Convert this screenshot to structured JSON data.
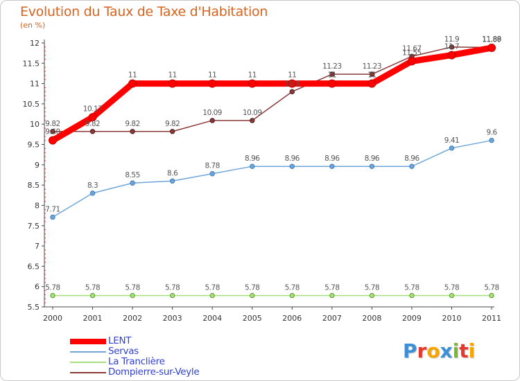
{
  "header": {
    "title": "Evolution du Taux de Taxe d'Habitation",
    "subtitle": "(en %)"
  },
  "logo": {
    "text": "Proxiti",
    "letters": [
      "P",
      "r",
      "o",
      "x",
      "i",
      "t",
      "i"
    ],
    "colors": [
      "#3d8fd8",
      "#e8372c",
      "#f7a300",
      "#3d8fd8",
      "#7cb82f",
      "#e8372c",
      "#f7a300"
    ]
  },
  "chart_data": {
    "type": "line",
    "title": "Evolution du Taux de Taxe d'Habitation",
    "ylabel": "(en %)",
    "xlabel": "",
    "categories": [
      "2000",
      "2001",
      "2002",
      "2003",
      "2004",
      "2005",
      "2006",
      "2007",
      "2008",
      "2009",
      "2010",
      "2011"
    ],
    "ylim": [
      5.5,
      12
    ],
    "yticks": [
      "5.5",
      "6",
      "6.5",
      "7",
      "7.5",
      "8",
      "8.5",
      "9",
      "9.5",
      "10",
      "10.5",
      "11",
      "11.5",
      "12"
    ],
    "grid": false,
    "legend_position": "bottom-left",
    "series": [
      {
        "name": "LENT",
        "color": "#ff0000",
        "thick": true,
        "values": [
          9.6,
          10.17,
          11,
          11,
          11,
          11,
          11,
          11,
          11,
          11.55,
          11.7,
          11.88
        ],
        "labels": [
          "9.60",
          "10.17",
          "11",
          "11",
          "11",
          "11",
          "11",
          "11",
          "11",
          "11.55",
          "11.7",
          "11.88"
        ]
      },
      {
        "name": "Servas",
        "color": "#6ea6d9",
        "thick": false,
        "values": [
          7.71,
          8.3,
          8.55,
          8.6,
          8.78,
          8.96,
          8.96,
          8.96,
          8.96,
          8.96,
          9.41,
          9.6
        ],
        "labels": [
          "7.71",
          "8.3",
          "8.55",
          "8.6",
          "8.78",
          "8.96",
          "8.96",
          "8.96",
          "8.96",
          "8.96",
          "9.41",
          "9.6"
        ]
      },
      {
        "name": "La Tranclière",
        "color": "#a6e07a",
        "thick": false,
        "values": [
          5.78,
          5.78,
          5.78,
          5.78,
          5.78,
          5.78,
          5.78,
          5.78,
          5.78,
          5.78,
          5.78,
          5.78
        ],
        "labels": [
          "5.78",
          "5.78",
          "5.78",
          "5.78",
          "5.78",
          "5.78",
          "5.78",
          "5.78",
          "5.78",
          "5.78",
          "5.78",
          "5.78"
        ]
      },
      {
        "name": "Dompierre-sur-Veyle",
        "color": "#8b3a3a",
        "thick": false,
        "values": [
          9.82,
          9.82,
          9.82,
          9.82,
          10.09,
          10.09,
          10.8,
          11.23,
          11.23,
          11.67,
          11.9,
          11.89
        ],
        "labels": [
          "9.82",
          "9.82",
          "9.82",
          "9.82",
          "10.09",
          "10.09",
          "10.8",
          "11.23",
          "11.23",
          "11.67",
          "11.9",
          "11.89"
        ]
      }
    ]
  }
}
